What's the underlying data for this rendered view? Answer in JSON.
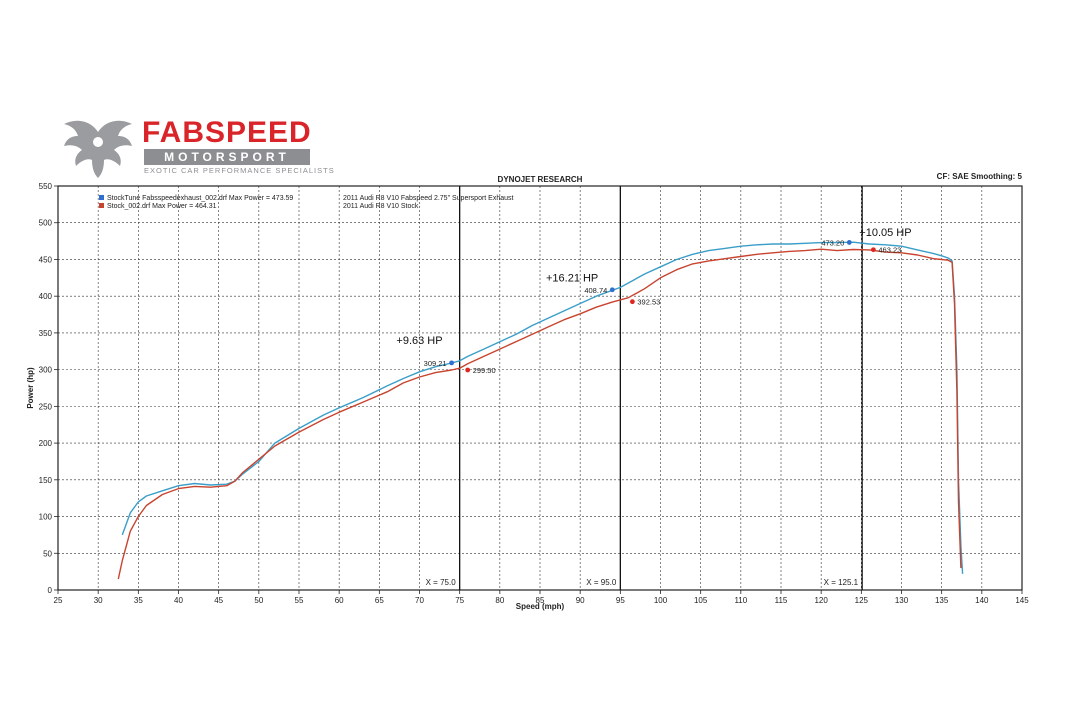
{
  "brand": {
    "name": "FABSPEED",
    "subtitle": "MOTORSPORT",
    "tagline": "EXOTIC CAR PERFORMANCE SPECIALISTS",
    "color": "#d9252a"
  },
  "chart_data": {
    "type": "line",
    "title": "DYNOJET RESEARCH",
    "header_right": "CF: SAE  Smoothing: 5",
    "xlabel": "Speed (mph)",
    "ylabel": "Power (hp)",
    "xlim": [
      25,
      145
    ],
    "ylim": [
      0,
      550
    ],
    "x_ticks": [
      25,
      30,
      35,
      40,
      45,
      50,
      55,
      60,
      65,
      70,
      75,
      80,
      85,
      90,
      95,
      100,
      105,
      110,
      115,
      120,
      125,
      130,
      135,
      140,
      145
    ],
    "y_ticks": [
      0,
      50,
      100,
      150,
      200,
      250,
      300,
      350,
      400,
      450,
      500,
      550
    ],
    "grid": true,
    "legend_position": "top-left",
    "series": [
      {
        "name": "StockTune Fabsspeedexhaust_002.drf Max Power = 473.59",
        "description": "2011 Audi R8 V10 Fabspeed 2.75\" Supersport Exhaust",
        "color": "#3a9ec9",
        "x": [
          33,
          34,
          35,
          36,
          38,
          40,
          42,
          44,
          46,
          47,
          48,
          50,
          52,
          55,
          58,
          60,
          63,
          66,
          68,
          70,
          72,
          74,
          75,
          76,
          78,
          80,
          82,
          84,
          86,
          88,
          90,
          92,
          94,
          95,
          96,
          98,
          100,
          102,
          104,
          106,
          108,
          110,
          112,
          114,
          116,
          118,
          120,
          122,
          124,
          126,
          128,
          130,
          132,
          134,
          135,
          135.8,
          136.3,
          136.6,
          136.9,
          137.1,
          137.4,
          137.6
        ],
        "y": [
          75,
          105,
          120,
          128,
          135,
          142,
          145,
          143,
          144,
          148,
          158,
          175,
          200,
          220,
          238,
          248,
          262,
          278,
          288,
          297,
          304,
          309,
          312,
          318,
          328,
          338,
          348,
          360,
          370,
          380,
          390,
          400,
          408,
          412,
          418,
          430,
          440,
          450,
          457,
          462,
          465,
          468,
          470,
          471,
          471,
          472,
          473,
          473,
          473.5,
          471,
          470,
          468,
          463,
          458,
          455,
          452,
          448,
          400,
          300,
          150,
          60,
          22
        ]
      },
      {
        "name": "Stock_002.drf Max Power = 464.31",
        "description": "2011 Audi R8 V10 Stock",
        "color": "#c8442e",
        "x": [
          32.5,
          33,
          34,
          35,
          36,
          38,
          40,
          42,
          44,
          46,
          47,
          48,
          50,
          52,
          55,
          58,
          60,
          63,
          66,
          68,
          70,
          72,
          74,
          75,
          76,
          78,
          80,
          82,
          84,
          86,
          88,
          90,
          92,
          94,
          96,
          98,
          100,
          102,
          104,
          106,
          108,
          110,
          112,
          114,
          116,
          118,
          120,
          122,
          124,
          126,
          128,
          130,
          132,
          134,
          135,
          135.8,
          136.3,
          136.6,
          136.9,
          137.1,
          137.4
        ],
        "y": [
          15,
          40,
          80,
          100,
          115,
          130,
          138,
          141,
          140,
          142,
          148,
          160,
          178,
          196,
          215,
          232,
          242,
          256,
          270,
          282,
          290,
          296,
          299.5,
          302,
          308,
          318,
          328,
          338,
          348,
          358,
          368,
          376,
          385,
          392,
          398,
          410,
          425,
          436,
          444,
          448,
          451,
          454,
          457,
          459,
          461,
          462,
          464,
          462,
          463.5,
          463,
          460,
          459,
          456,
          451,
          450,
          449,
          446,
          390,
          270,
          120,
          30
        ]
      }
    ],
    "vertical_markers": [
      {
        "x": 75.0,
        "label": "X = 75.0"
      },
      {
        "x": 95.0,
        "label": "X = 95.0"
      },
      {
        "x": 125.1,
        "label": "X = 125.1"
      }
    ],
    "point_labels": [
      {
        "series": 0,
        "x": 74,
        "y": 309.21,
        "label": "309.21"
      },
      {
        "series": 1,
        "x": 76,
        "y": 299.5,
        "label": "299.50"
      },
      {
        "series": 0,
        "x": 94,
        "y": 408.74,
        "label": "408.74"
      },
      {
        "series": 1,
        "x": 96.5,
        "y": 392.53,
        "label": "392.53"
      },
      {
        "series": 0,
        "x": 123.5,
        "y": 473.2,
        "label": "473.20"
      },
      {
        "series": 1,
        "x": 126.5,
        "y": 463.23,
        "label": "463.23"
      }
    ],
    "annotations": [
      {
        "x": 70,
        "y": 335,
        "text": "+9.63 HP"
      },
      {
        "x": 89,
        "y": 420,
        "text": "+16.21 HP"
      },
      {
        "x": 128,
        "y": 482,
        "text": "+10.05 HP"
      }
    ]
  }
}
